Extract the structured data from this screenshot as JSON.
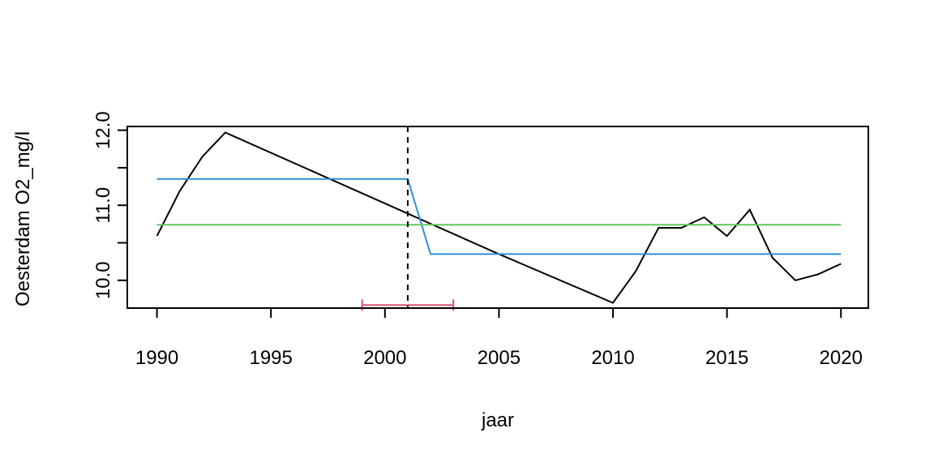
{
  "chart_data": {
    "type": "line",
    "title": "",
    "xlabel": "jaar",
    "ylabel": "Oesterdam O2_mg/l",
    "xlim": [
      1988.7,
      2021.2
    ],
    "ylim": [
      9.63,
      12.05
    ],
    "x_ticks": [
      1990,
      1995,
      2000,
      2005,
      2010,
      2015,
      2020
    ],
    "x_tick_labels": [
      "1990",
      "1995",
      "2000",
      "2005",
      "2010",
      "2015",
      "2020"
    ],
    "y_ticks": [
      10.0,
      10.5,
      11.0,
      11.5,
      12.0
    ],
    "y_tick_labels": [
      "10.0",
      "",
      "11.0",
      "",
      "12.0"
    ],
    "grid": false,
    "legend": "none",
    "series": [
      {
        "color": "#000000",
        "x": [
          1990,
          1991,
          1992,
          1993,
          2005,
          2010,
          2011,
          2012,
          2013,
          2014,
          2015,
          2016,
          2017,
          2018,
          2019,
          2020
        ],
        "y": [
          10.59,
          11.19,
          11.65,
          11.97,
          10.35,
          9.7,
          10.12,
          10.7,
          10.7,
          10.84,
          10.59,
          10.94,
          10.3,
          10.0,
          10.08,
          10.22
        ]
      },
      {
        "color": "#2f8fd5",
        "x": [
          1990,
          2001,
          2002,
          2020
        ],
        "y": [
          11.35,
          11.35,
          10.35,
          10.35
        ]
      },
      {
        "color": "#61c85a",
        "x": [
          1990,
          2020
        ],
        "y": [
          10.74,
          10.74
        ]
      }
    ],
    "changepoint": {
      "x": 2001,
      "style": "dashed",
      "color": "#000000"
    },
    "confidence_interval": {
      "x_low": 1999,
      "x_high": 2003,
      "y": 9.67,
      "color": "#d6566e"
    }
  }
}
